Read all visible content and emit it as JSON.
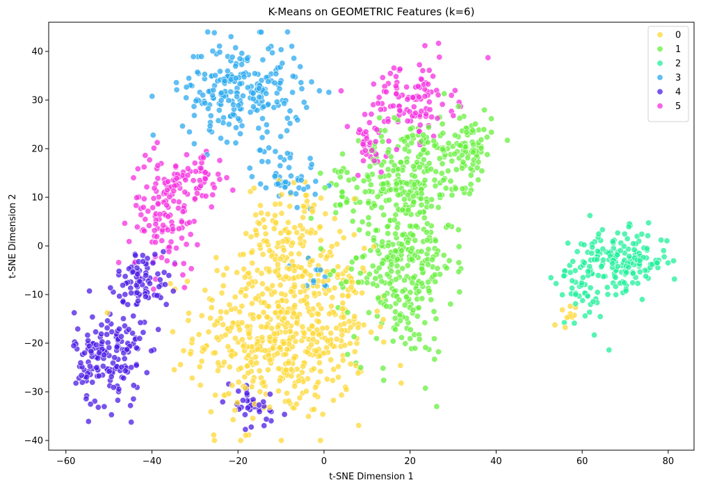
{
  "chart_data": {
    "type": "scatter",
    "title": "K-Means on GEOMETRIC Features (k=6)",
    "xlabel": "t-SNE Dimension 1",
    "ylabel": "t-SNE Dimension 2",
    "xlim": [
      -64,
      86
    ],
    "ylim": [
      -42,
      46
    ],
    "x_ticks": [
      -60,
      -40,
      -20,
      0,
      20,
      40,
      60,
      80
    ],
    "y_ticks": [
      -40,
      -30,
      -20,
      -10,
      0,
      10,
      20,
      30,
      40
    ],
    "grid": false,
    "legend_position": "top-right",
    "point_alpha": 0.75,
    "series": [
      {
        "name": "0",
        "color": "#fdd835",
        "clusters": [
          {
            "cx": -10,
            "cy": -18,
            "sx": 10,
            "sy": 9,
            "n": 520
          },
          {
            "cx": -8,
            "cy": 3,
            "sx": 5,
            "sy": 5,
            "n": 110
          },
          {
            "cx": 5,
            "cy": -14,
            "sx": 3,
            "sy": 6,
            "n": 40
          },
          {
            "cx": 56,
            "cy": -15,
            "sx": 1.2,
            "sy": 1.5,
            "n": 10
          }
        ]
      },
      {
        "name": "1",
        "color": "#66f03c",
        "clusters": [
          {
            "cx": 18,
            "cy": -3,
            "sx": 6,
            "sy": 10,
            "n": 330
          },
          {
            "cx": 20,
            "cy": 16,
            "sx": 6,
            "sy": 5,
            "n": 150
          },
          {
            "cx": 33,
            "cy": 20,
            "sx": 3,
            "sy": 4,
            "n": 100
          },
          {
            "cx": 5,
            "cy": 12,
            "sx": 2.5,
            "sy": 3,
            "n": 25
          }
        ]
      },
      {
        "name": "2",
        "color": "#1ef09a",
        "clusters": [
          {
            "cx": 70,
            "cy": -3,
            "sx": 5,
            "sy": 3,
            "n": 150
          },
          {
            "cx": 60,
            "cy": -7,
            "sx": 3,
            "sy": 5,
            "n": 60
          }
        ]
      },
      {
        "name": "3",
        "color": "#2ba9ef",
        "clusters": [
          {
            "cx": -19,
            "cy": 32,
            "sx": 7,
            "sy": 5,
            "n": 230
          },
          {
            "cx": -9,
            "cy": 15,
            "sx": 4,
            "sy": 3,
            "n": 50
          },
          {
            "cx": -3,
            "cy": -6,
            "sx": 2.5,
            "sy": 2,
            "n": 12
          }
        ]
      },
      {
        "name": "4",
        "color": "#4b1be5",
        "clusters": [
          {
            "cx": -50,
            "cy": -23,
            "sx": 4,
            "sy": 5,
            "n": 170
          },
          {
            "cx": -42,
            "cy": -7,
            "sx": 3,
            "sy": 3,
            "n": 80
          },
          {
            "cx": -17,
            "cy": -33,
            "sx": 4,
            "sy": 2.5,
            "n": 35
          }
        ]
      },
      {
        "name": "5",
        "color": "#f52fe0",
        "clusters": [
          {
            "cx": -37,
            "cy": 7,
            "sx": 4,
            "sy": 6,
            "n": 130
          },
          {
            "cx": -29,
            "cy": 14,
            "sx": 3,
            "sy": 3,
            "n": 50
          },
          {
            "cx": 20,
            "cy": 30,
            "sx": 5,
            "sy": 4,
            "n": 110
          },
          {
            "cx": 10,
            "cy": 20,
            "sx": 3,
            "sy": 3,
            "n": 30
          }
        ]
      }
    ]
  }
}
